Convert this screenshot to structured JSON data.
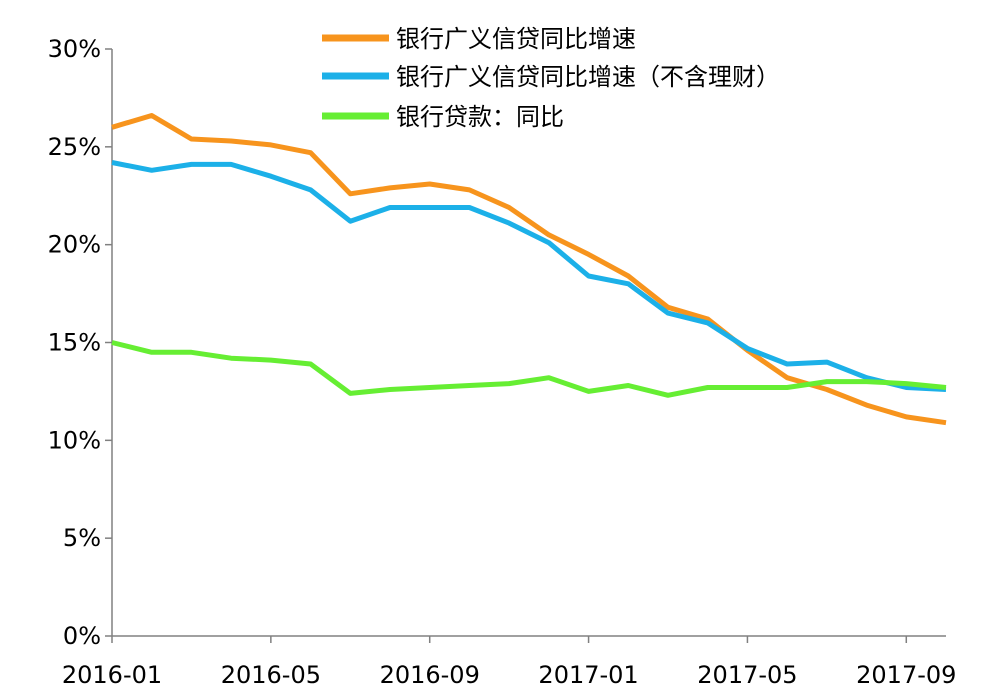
{
  "chart_data": {
    "type": "line",
    "title": "",
    "xlabel": "",
    "ylabel": "",
    "ylim": [
      0,
      30
    ],
    "y_ticks": [
      "0%",
      "5%",
      "10%",
      "15%",
      "20%",
      "25%",
      "30%"
    ],
    "y_tick_values": [
      0,
      5,
      10,
      15,
      20,
      25,
      30
    ],
    "x": [
      "2016-01",
      "2016-02",
      "2016-03",
      "2016-04",
      "2016-05",
      "2016-06",
      "2016-07",
      "2016-08",
      "2016-09",
      "2016-10",
      "2016-11",
      "2016-12",
      "2017-01",
      "2017-02",
      "2017-03",
      "2017-04",
      "2017-05",
      "2017-06",
      "2017-07",
      "2017-08",
      "2017-09",
      "2017-10"
    ],
    "x_tick_labels": [
      "2016-01",
      "2016-05",
      "2016-09",
      "2017-01",
      "2017-05",
      "2017-09"
    ],
    "x_tick_indices": [
      0,
      4,
      8,
      12,
      16,
      20
    ],
    "legend_position": "top",
    "grid": false,
    "series": [
      {
        "name": "银行广义信贷同比增速",
        "color": "#F7941D",
        "values": [
          26.0,
          26.6,
          25.4,
          25.3,
          25.1,
          24.7,
          22.6,
          22.9,
          23.1,
          22.8,
          21.9,
          20.5,
          19.5,
          18.4,
          16.8,
          16.2,
          14.6,
          13.2,
          12.6,
          11.8,
          11.2,
          10.9
        ]
      },
      {
        "name": "银行广义信贷同比增速（不含理财）",
        "color": "#1CB0E8",
        "values": [
          24.2,
          23.8,
          24.1,
          24.1,
          23.5,
          22.8,
          21.2,
          21.9,
          21.9,
          21.9,
          21.1,
          20.1,
          18.4,
          18.0,
          16.5,
          16.0,
          14.7,
          13.9,
          14.0,
          13.2,
          12.7,
          12.6
        ]
      },
      {
        "name": "银行贷款：同比",
        "color": "#66EE33",
        "values": [
          15.0,
          14.5,
          14.5,
          14.2,
          14.1,
          13.9,
          12.4,
          12.6,
          12.7,
          12.8,
          12.9,
          13.2,
          12.5,
          12.8,
          12.3,
          12.7,
          12.7,
          12.7,
          13.0,
          13.0,
          12.9,
          12.7
        ]
      }
    ]
  }
}
